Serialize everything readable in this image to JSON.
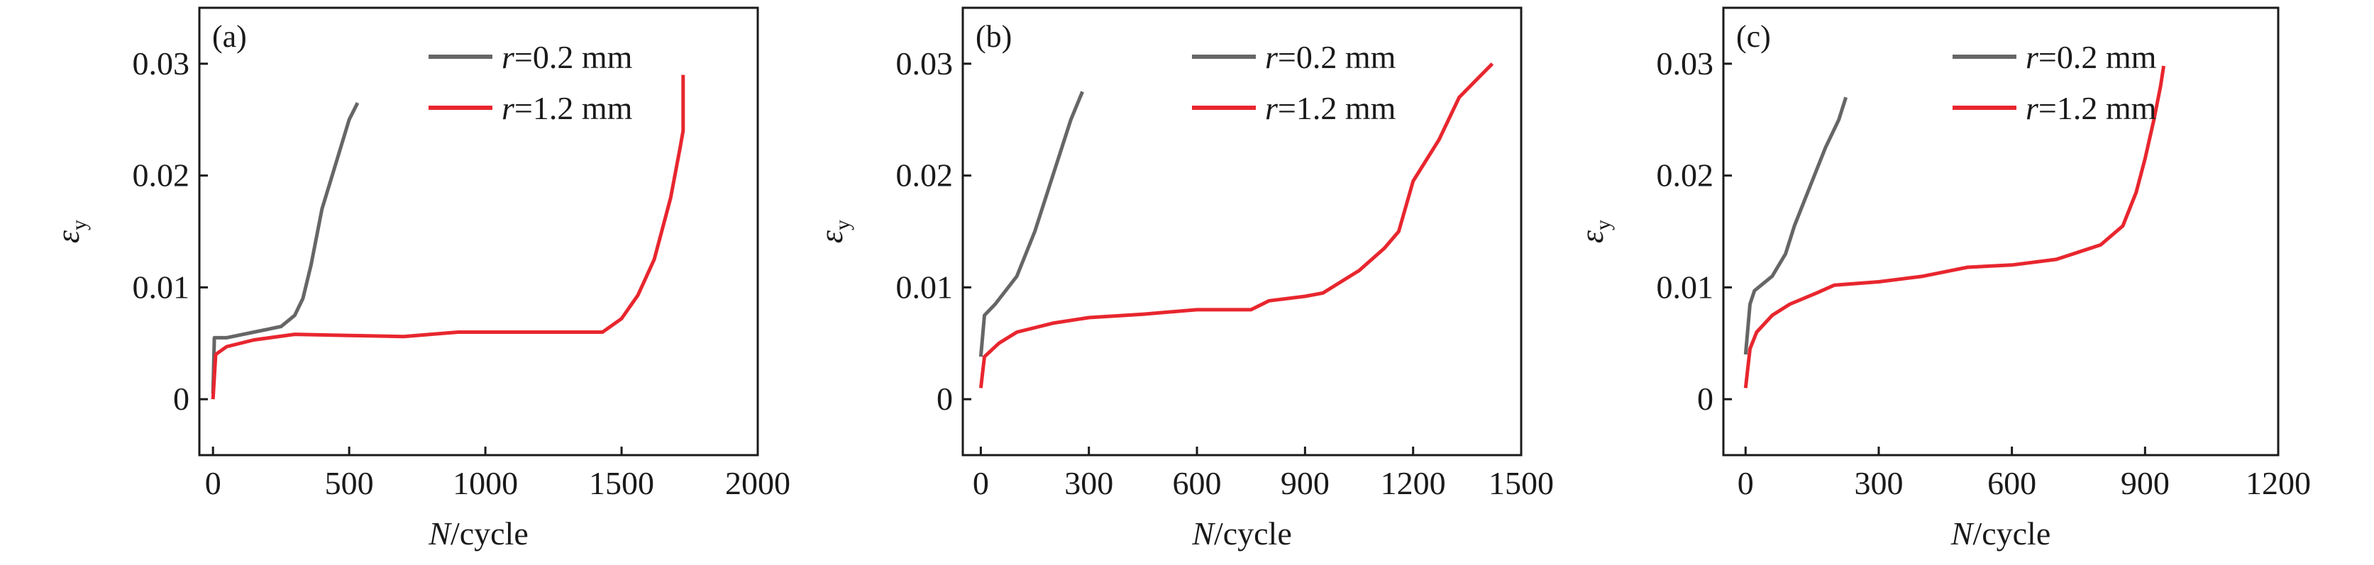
{
  "colors": {
    "r02": "#666666",
    "r12": "#e8262e",
    "axis": "#1a1a1a"
  },
  "chart_data": [
    {
      "type": "line",
      "panel_label": "(a)",
      "xlabel_italic": "N",
      "xlabel_rest": "/cycle",
      "ylabel_symbol": "ε",
      "ylabel_sub": "y",
      "xlim": [
        -50,
        2000
      ],
      "ylim": [
        -0.005,
        0.035
      ],
      "xticks": [
        0,
        500,
        1000,
        1500,
        2000
      ],
      "yticks": [
        0,
        0.01,
        0.02,
        0.03
      ],
      "ytick_labels": [
        "0",
        "0.01",
        "0.02",
        "0.03"
      ],
      "grid": false,
      "legend_placement": "top-center",
      "series": [
        {
          "name_italic": "r",
          "name_rest": "=0.2 mm",
          "color": "#666666",
          "x": [
            0,
            5,
            50,
            150,
            250,
            300,
            330,
            360,
            400,
            450,
            500,
            531
          ],
          "y": [
            0.0005,
            0.0055,
            0.0055,
            0.006,
            0.0065,
            0.0075,
            0.009,
            0.012,
            0.017,
            0.021,
            0.025,
            0.0265
          ]
        },
        {
          "name_italic": "r",
          "name_rest": "=1.2 mm",
          "color": "#e8262e",
          "x": [
            0,
            10,
            50,
            150,
            300,
            500,
            700,
            900,
            1100,
            1300,
            1430,
            1500,
            1560,
            1620,
            1680,
            1715,
            1726,
            1726
          ],
          "y": [
            0,
            0.004,
            0.0047,
            0.0053,
            0.0058,
            0.0057,
            0.0056,
            0.006,
            0.006,
            0.006,
            0.006,
            0.0072,
            0.0093,
            0.0125,
            0.018,
            0.0225,
            0.024,
            0.029
          ]
        }
      ]
    },
    {
      "type": "line",
      "panel_label": "(b)",
      "xlabel_italic": "N",
      "xlabel_rest": "/cycle",
      "ylabel_symbol": "ε",
      "ylabel_sub": "y",
      "xlim": [
        -50,
        1500
      ],
      "ylim": [
        -0.005,
        0.035
      ],
      "xticks": [
        0,
        300,
        600,
        900,
        1200,
        1500
      ],
      "yticks": [
        0,
        0.01,
        0.02,
        0.03
      ],
      "ytick_labels": [
        "0",
        "0.01",
        "0.02",
        "0.03"
      ],
      "grid": false,
      "legend_placement": "top-center",
      "series": [
        {
          "name_italic": "r",
          "name_rest": "=0.2 mm",
          "color": "#666666",
          "x": [
            0,
            10,
            40,
            100,
            150,
            200,
            250,
            282
          ],
          "y": [
            0.0038,
            0.0075,
            0.0085,
            0.011,
            0.015,
            0.02,
            0.025,
            0.0275
          ]
        },
        {
          "name_italic": "r",
          "name_rest": "=1.2 mm",
          "color": "#e8262e",
          "x": [
            0,
            10,
            50,
            100,
            200,
            300,
            450,
            600,
            750,
            800,
            900,
            950,
            1050,
            1120,
            1160,
            1200,
            1272,
            1328,
            1380,
            1420
          ],
          "y": [
            0.001,
            0.0038,
            0.005,
            0.006,
            0.0068,
            0.0073,
            0.0076,
            0.008,
            0.008,
            0.0088,
            0.0092,
            0.0095,
            0.0115,
            0.0135,
            0.015,
            0.0195,
            0.0232,
            0.027,
            0.0287,
            0.03
          ]
        }
      ]
    },
    {
      "type": "line",
      "panel_label": "(c)",
      "xlabel_italic": "N",
      "xlabel_rest": "/cycle",
      "ylabel_symbol": "ε",
      "ylabel_sub": "y",
      "xlim": [
        -50,
        1200
      ],
      "ylim": [
        -0.005,
        0.035
      ],
      "xticks": [
        0,
        300,
        600,
        900,
        1200
      ],
      "yticks": [
        0,
        0.01,
        0.02,
        0.03
      ],
      "ytick_labels": [
        "0",
        "0.01",
        "0.02",
        "0.03"
      ],
      "grid": false,
      "legend_placement": "top-center",
      "series": [
        {
          "name_italic": "r",
          "name_rest": "=0.2 mm",
          "color": "#666666",
          "x": [
            0,
            10,
            20,
            60,
            90,
            110,
            150,
            180,
            210,
            226
          ],
          "y": [
            0.004,
            0.0085,
            0.0097,
            0.011,
            0.013,
            0.0155,
            0.0195,
            0.0225,
            0.025,
            0.027
          ]
        },
        {
          "name_italic": "r",
          "name_rest": "=1.2 mm",
          "color": "#e8262e",
          "x": [
            0,
            10,
            25,
            60,
            100,
            160,
            200,
            300,
            400,
            500,
            600,
            700,
            800,
            850,
            880,
            900,
            920,
            935,
            942
          ],
          "y": [
            0.001,
            0.0045,
            0.006,
            0.0075,
            0.0085,
            0.0095,
            0.0102,
            0.0105,
            0.011,
            0.0118,
            0.012,
            0.0125,
            0.0138,
            0.0155,
            0.0185,
            0.0215,
            0.025,
            0.028,
            0.0298
          ]
        }
      ]
    }
  ]
}
